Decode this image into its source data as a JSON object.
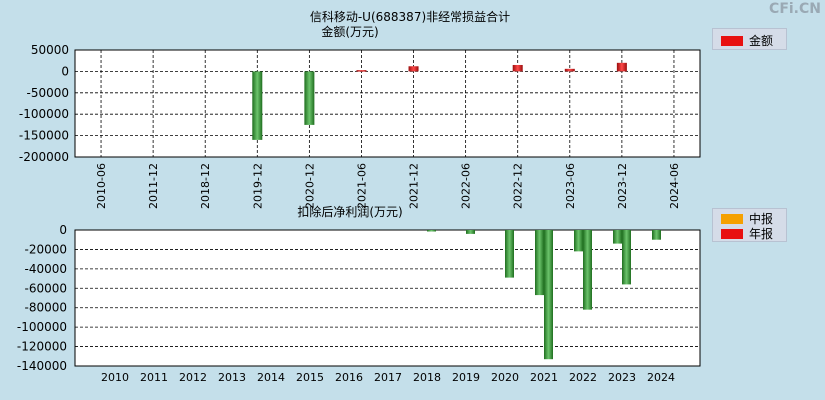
{
  "watermark": "CFi.CN",
  "chart_data": [
    {
      "type": "bar",
      "title": "信科移动-U(688387)非经常损益合计",
      "subtitle": "金额(万元)",
      "categories": [
        "2010-06",
        "2011-12",
        "2018-12",
        "2019-12",
        "2020-12",
        "2021-06",
        "2021-12",
        "2022-06",
        "2022-12",
        "2023-06",
        "2023-12",
        "2024-06"
      ],
      "series": [
        {
          "name": "金额",
          "color": "#e81010",
          "values": [
            null,
            null,
            null,
            -160000,
            -125000,
            3000,
            12000,
            null,
            15000,
            6000,
            20000,
            null
          ]
        }
      ],
      "ylim": [
        -200000,
        50000
      ],
      "yticks": [
        50000,
        0,
        -50000,
        -100000,
        -150000,
        -200000
      ],
      "ytick_labels": [
        "50000",
        "0",
        "-50000",
        "-100000",
        "-150000",
        "-200000"
      ],
      "legend": [
        {
          "label": "金额",
          "color": "#e81010"
        }
      ]
    },
    {
      "type": "bar",
      "title": "扣除后净利润(万元)",
      "categories": [
        "2010",
        "2011",
        "2012",
        "2013",
        "2014",
        "2015",
        "2016",
        "2017",
        "2018",
        "2019",
        "2020",
        "2021",
        "2022",
        "2023",
        "2024"
      ],
      "series": [
        {
          "name": "中报",
          "color": "#f5a000",
          "values": [
            null,
            null,
            null,
            null,
            null,
            null,
            null,
            null,
            null,
            null,
            null,
            -67000,
            -22000,
            -14000,
            -10000
          ]
        },
        {
          "name": "年报",
          "color": "#e81010",
          "values": [
            null,
            null,
            null,
            null,
            null,
            null,
            null,
            null,
            -1000,
            -4000,
            -49000,
            -133000,
            -82000,
            -56000,
            null
          ]
        }
      ],
      "ylim": [
        -140000,
        0
      ],
      "yticks": [
        0,
        -20000,
        -40000,
        -60000,
        -80000,
        -100000,
        -120000,
        -140000
      ],
      "ytick_labels": [
        "0",
        "-20000",
        "-40000",
        "-60000",
        "-80000",
        "-100000",
        "-120000",
        "-140000"
      ],
      "legend": [
        {
          "label": "中报",
          "color": "#f5a000"
        },
        {
          "label": "年报",
          "color": "#e81010"
        }
      ]
    }
  ]
}
